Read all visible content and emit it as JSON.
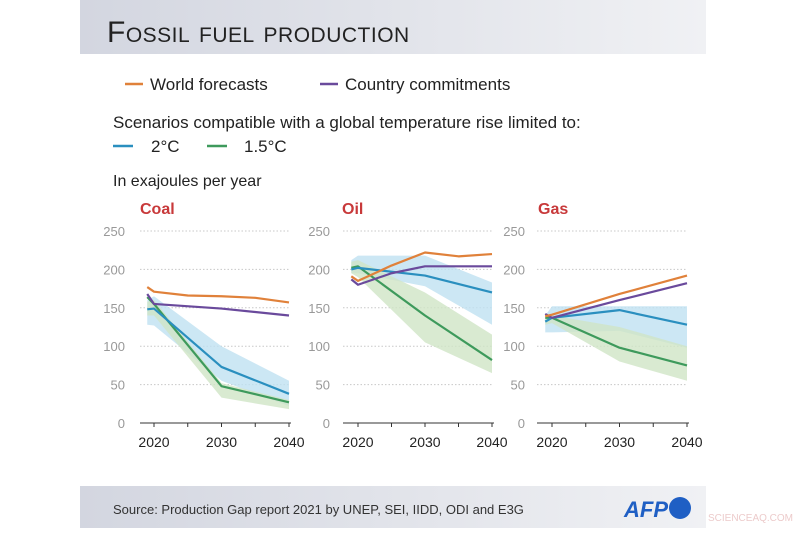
{
  "title": "Fossil fuel production",
  "legend": {
    "world": "World forecasts",
    "country": "Country commitments",
    "scenario_intro": "Scenarios compatible with a global temperature rise limited to:",
    "two": "2°C",
    "onefive": "1.5°C"
  },
  "unit": "In exajoules per year",
  "source": "Source: Production Gap report 2021 by UNEP, SEI, IIDD, ODI and E3G",
  "logo": "AFP",
  "watermark": "SCIENCEAQ.COM",
  "colors": {
    "world": "#e0813a",
    "country": "#6a4a9c",
    "two": "#2a8fbf",
    "onefive": "#3e9a5c",
    "two_band": "#bfe1f1",
    "onefive_band": "#cfe5c6",
    "panel_title": "#c8393a",
    "logo": "#1f5fc4"
  },
  "chart_data": [
    {
      "type": "line",
      "title": "Coal",
      "ylim": [
        0,
        250
      ],
      "yticks": [
        0,
        50,
        100,
        150,
        200,
        250
      ],
      "xticks": [
        2020,
        2030,
        2040
      ],
      "grid": true,
      "series": [
        {
          "name": "World forecasts",
          "key": "world",
          "x": [
            2019,
            2020,
            2025,
            2030,
            2035,
            2040
          ],
          "y": [
            177,
            171,
            166,
            165,
            163,
            157
          ]
        },
        {
          "name": "Country commitments",
          "key": "country",
          "x": [
            2019,
            2020,
            2030,
            2040
          ],
          "y": [
            168,
            155,
            149,
            140
          ]
        },
        {
          "name": "2°C",
          "key": "two",
          "x": [
            2019,
            2020,
            2030,
            2040
          ],
          "y": [
            148,
            149,
            73,
            38
          ],
          "band": {
            "low": [
              128,
              127,
              55,
              22
            ],
            "high": [
              160,
              165,
              100,
              55
            ]
          }
        },
        {
          "name": "1.5°C",
          "key": "onefive",
          "x": [
            2019,
            2020,
            2030,
            2040
          ],
          "y": [
            164,
            155,
            48,
            27
          ],
          "band": {
            "low": [
              140,
              140,
              33,
              18
            ],
            "high": [
              158,
              160,
              52,
              30
            ]
          }
        }
      ]
    },
    {
      "type": "line",
      "title": "Oil",
      "ylim": [
        0,
        250
      ],
      "yticks": [
        0,
        50,
        100,
        150,
        200,
        250
      ],
      "xticks": [
        2020,
        2030,
        2040
      ],
      "grid": true,
      "series": [
        {
          "name": "World forecasts",
          "key": "world",
          "x": [
            2019,
            2020,
            2025,
            2030,
            2035,
            2040
          ],
          "y": [
            191,
            185,
            205,
            222,
            217,
            220
          ]
        },
        {
          "name": "Country commitments",
          "key": "country",
          "x": [
            2019,
            2020,
            2025,
            2030,
            2040
          ],
          "y": [
            187,
            180,
            195,
            204,
            204
          ]
        },
        {
          "name": "2°C",
          "key": "two",
          "x": [
            2019,
            2020,
            2030,
            2040
          ],
          "y": [
            200,
            202,
            192,
            170
          ],
          "band": {
            "low": [
              195,
              195,
              178,
              128
            ],
            "high": [
              212,
              218,
              218,
              183
            ]
          }
        },
        {
          "name": "1.5°C",
          "key": "onefive",
          "x": [
            2019,
            2020,
            2030,
            2040
          ],
          "y": [
            202,
            204,
            140,
            82
          ],
          "band": {
            "low": [
              195,
              190,
              105,
              65
            ],
            "high": [
              210,
              212,
              170,
              115
            ]
          }
        }
      ]
    },
    {
      "type": "line",
      "title": "Gas",
      "ylim": [
        0,
        250
      ],
      "yticks": [
        0,
        50,
        100,
        150,
        200,
        250
      ],
      "xticks": [
        2020,
        2030,
        2040
      ],
      "grid": true,
      "series": [
        {
          "name": "World forecasts",
          "key": "world",
          "x": [
            2019,
            2020,
            2030,
            2040
          ],
          "y": [
            139,
            141,
            168,
            192
          ]
        },
        {
          "name": "Country commitments",
          "key": "country",
          "x": [
            2019,
            2020,
            2030,
            2040
          ],
          "y": [
            142,
            137,
            160,
            182
          ]
        },
        {
          "name": "2°C",
          "key": "two",
          "x": [
            2019,
            2020,
            2030,
            2040
          ],
          "y": [
            132,
            137,
            147,
            128
          ],
          "band": {
            "low": [
              118,
              118,
              120,
              98
            ],
            "high": [
              140,
              152,
              152,
              152
            ]
          }
        },
        {
          "name": "1.5°C",
          "key": "onefive",
          "x": [
            2019,
            2020,
            2030,
            2040
          ],
          "y": [
            137,
            137,
            98,
            75
          ],
          "band": {
            "low": [
              128,
              130,
              80,
              55
            ],
            "high": [
              140,
              140,
              125,
              100
            ]
          }
        }
      ]
    }
  ]
}
